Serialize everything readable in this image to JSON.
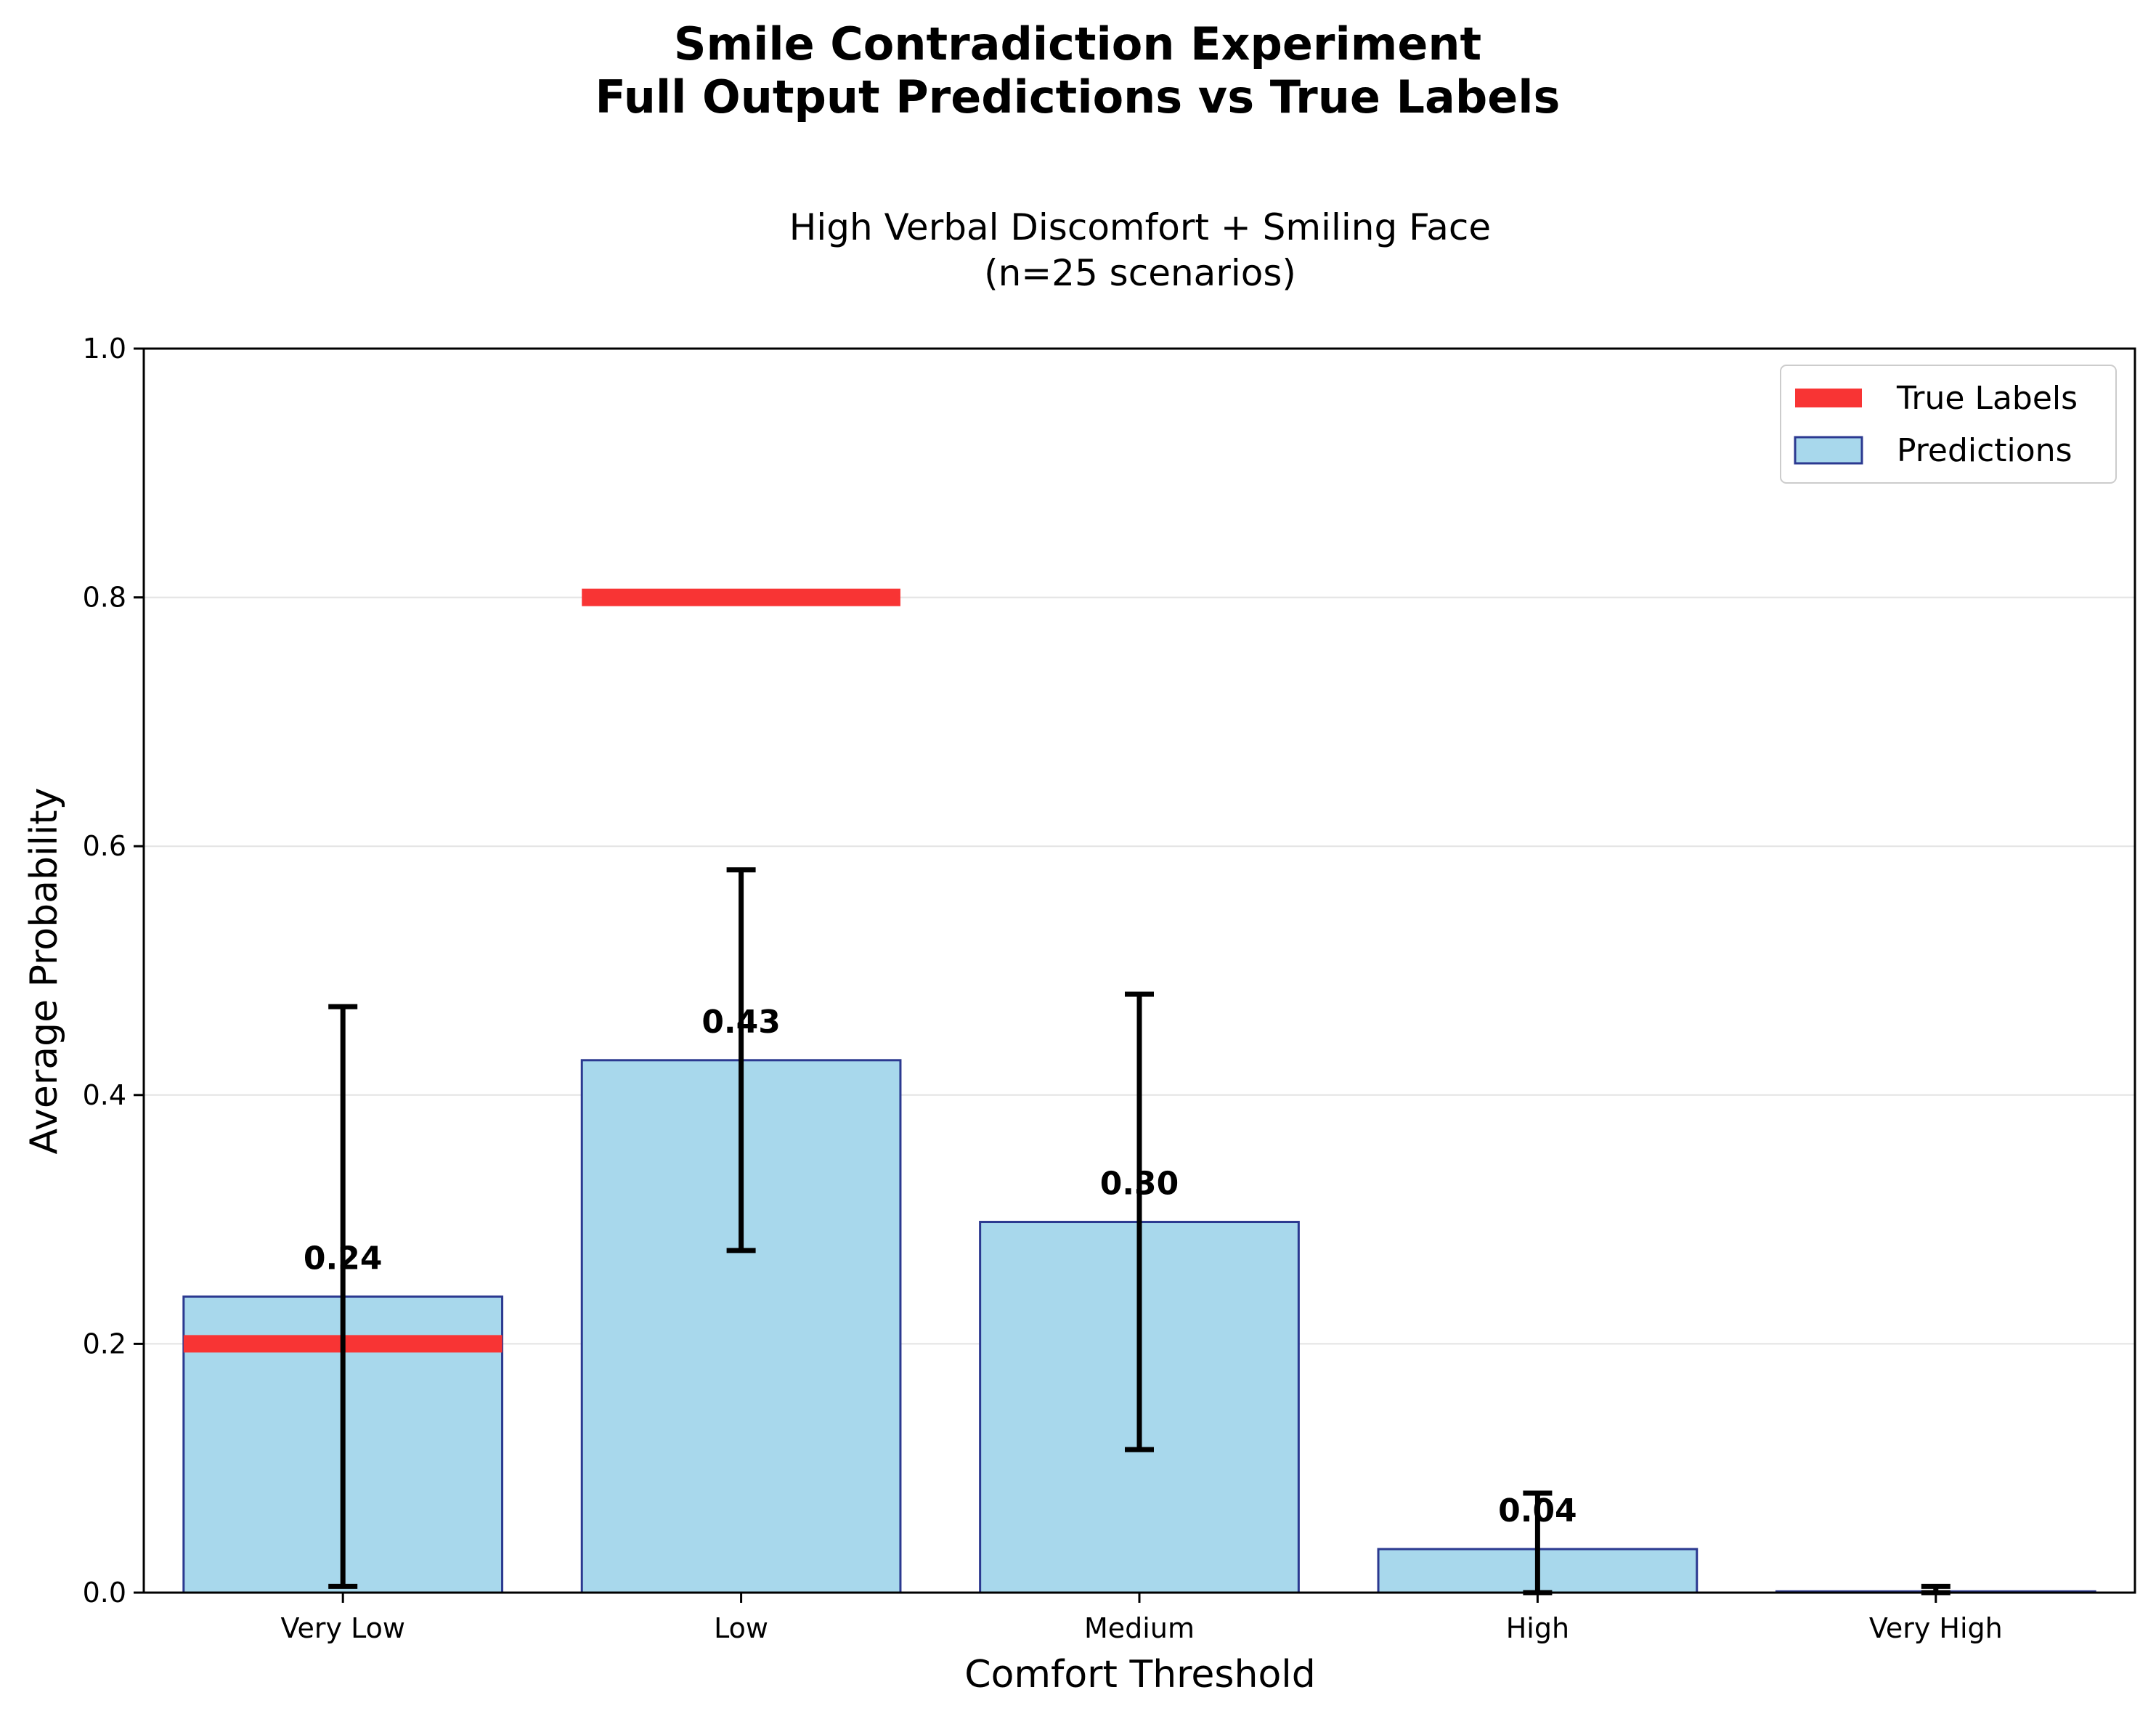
{
  "chart_data": {
    "type": "bar",
    "suptitle": [
      "Smile Contradiction Experiment",
      "Full Output Predictions vs True Labels"
    ],
    "title": [
      "High Verbal Discomfort + Smiling Face",
      "(n=25 scenarios)"
    ],
    "xlabel": "Comfort Threshold",
    "ylabel": "Average Probability",
    "ylim": [
      0,
      1.0
    ],
    "yticks": [
      "0.0",
      "0.2",
      "0.4",
      "0.6",
      "0.8",
      "1.0"
    ],
    "grid": "y",
    "legend_position": "top-right",
    "categories": [
      "Very Low",
      "Low",
      "Medium",
      "High",
      "Very High"
    ],
    "series": [
      {
        "name": "Predictions",
        "values": [
          0.238,
          0.428,
          0.298,
          0.035,
          0.001
        ],
        "error_low": [
          0.005,
          0.275,
          0.115,
          0.0,
          0.0
        ],
        "error_high": [
          0.471,
          0.581,
          0.481,
          0.08,
          0.005
        ],
        "labels": [
          "0.24",
          "0.43",
          "0.30",
          "0.04",
          ""
        ],
        "color": "#a8d8ec",
        "edge_color": "#2b3990"
      },
      {
        "name": "True Labels",
        "values": [
          0.2,
          0.8,
          0.0,
          0.0,
          0.0
        ],
        "color": "#f83434"
      }
    ]
  }
}
